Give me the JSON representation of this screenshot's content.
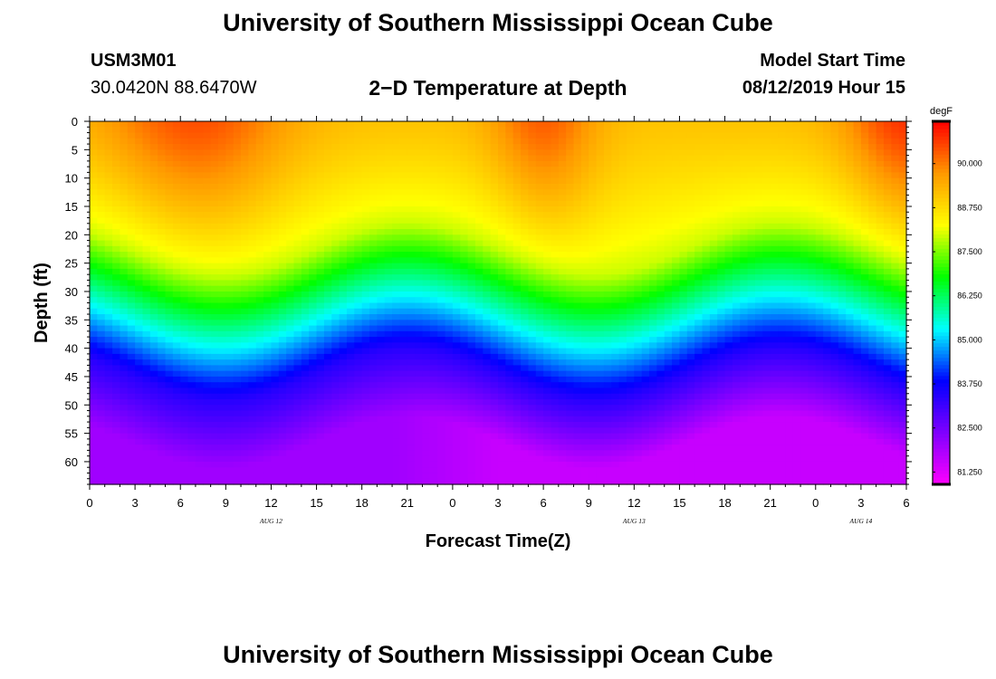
{
  "page": {
    "title_top": "University of Southern Mississippi Ocean Cube",
    "title_bottom": "University of Southern Mississippi Ocean Cube",
    "station_id": "USM3M01",
    "location": "30.0420N 88.6470W",
    "chart_title": "2−D Temperature at Depth",
    "model_start_label": "Model Start Time",
    "model_start_value": "08/12/2019 Hour 15"
  },
  "chart_data": {
    "type": "heatmap",
    "title": "2−D Temperature at Depth",
    "xlabel": "Forecast Time(Z)",
    "ylabel": "Depth (ft)",
    "x_range_hours": [
      0,
      54
    ],
    "y_range_ft": [
      0,
      64
    ],
    "x_tick_labels": [
      "0",
      "3",
      "6",
      "9",
      "12",
      "15",
      "18",
      "21",
      "0",
      "3",
      "6",
      "9",
      "12",
      "15",
      "18",
      "21",
      "0",
      "3",
      "6"
    ],
    "y_tick_labels": [
      "0",
      "5",
      "10",
      "15",
      "20",
      "25",
      "30",
      "35",
      "40",
      "45",
      "50",
      "55",
      "60"
    ],
    "date_labels": [
      {
        "text": "AUG 12",
        "hour": 12
      },
      {
        "text": "AUG 13",
        "hour": 36
      },
      {
        "text": "AUG 14",
        "hour": 51
      }
    ],
    "colorbar": {
      "unit": "degF",
      "min": 80.9,
      "max": 91.2,
      "tick_labels": [
        "90.000",
        "88.750",
        "87.500",
        "86.250",
        "85.000",
        "83.750",
        "82.500",
        "81.250"
      ],
      "tick_values": [
        90.0,
        88.75,
        87.5,
        86.25,
        85.0,
        83.75,
        82.5,
        81.25
      ]
    },
    "grid": false,
    "colormap": [
      "#ff00ff",
      "#8000ff",
      "#0000ff",
      "#00ffff",
      "#00ff00",
      "#ffff00",
      "#ff9900",
      "#ff0000"
    ]
  }
}
